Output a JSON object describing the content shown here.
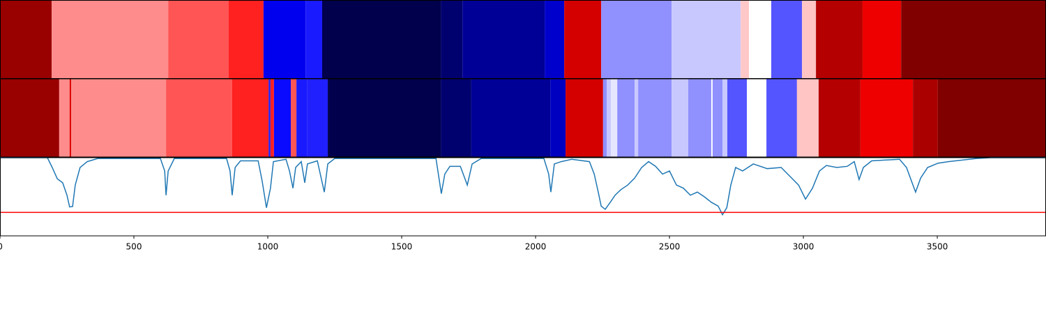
{
  "chart_data": {
    "type": "segmentation",
    "xlim": [
      0,
      3906
    ],
    "xticks": [
      0,
      500,
      1000,
      1500,
      2000,
      2500,
      3000,
      3500
    ],
    "ylim": [
      0,
      1
    ],
    "rows": [
      {
        "segments": [
          {
            "start": 0,
            "end": 193,
            "color": "#990000"
          },
          {
            "start": 193,
            "end": 628,
            "color": "#ff8c8c"
          },
          {
            "start": 628,
            "end": 854,
            "color": "#ff5555"
          },
          {
            "start": 854,
            "end": 984,
            "color": "#ff2020"
          },
          {
            "start": 984,
            "end": 1141,
            "color": "#0000ee"
          },
          {
            "start": 1141,
            "end": 1203,
            "color": "#1a1aff"
          },
          {
            "start": 1203,
            "end": 1646,
            "color": "#00004c"
          },
          {
            "start": 1646,
            "end": 1727,
            "color": "#00006e"
          },
          {
            "start": 1727,
            "end": 2034,
            "color": "#000096"
          },
          {
            "start": 2034,
            "end": 2107,
            "color": "#0000cc"
          },
          {
            "start": 2107,
            "end": 2245,
            "color": "#d40000"
          },
          {
            "start": 2245,
            "end": 2508,
            "color": "#9090ff"
          },
          {
            "start": 2508,
            "end": 2766,
            "color": "#c8c8ff"
          },
          {
            "start": 2766,
            "end": 2797,
            "color": "#ffc8c8"
          },
          {
            "start": 2797,
            "end": 2880,
            "color": "#ffffff"
          },
          {
            "start": 2880,
            "end": 2995,
            "color": "#5555ff"
          },
          {
            "start": 2995,
            "end": 3047,
            "color": "#ffc4c4"
          },
          {
            "start": 3047,
            "end": 3221,
            "color": "#b40000"
          },
          {
            "start": 3221,
            "end": 3365,
            "color": "#ee0000"
          },
          {
            "start": 3365,
            "end": 3906,
            "color": "#800000"
          }
        ]
      },
      {
        "segments": [
          {
            "start": 0,
            "end": 221,
            "color": "#990000"
          },
          {
            "start": 221,
            "end": 260,
            "color": "#ff8c8c"
          },
          {
            "start": 260,
            "end": 266,
            "color": "#dd0000"
          },
          {
            "start": 266,
            "end": 620,
            "color": "#ff8c8c"
          },
          {
            "start": 620,
            "end": 867,
            "color": "#ff5555"
          },
          {
            "start": 867,
            "end": 1003,
            "color": "#ff2020"
          },
          {
            "start": 1003,
            "end": 1010,
            "color": "#2020ff"
          },
          {
            "start": 1010,
            "end": 1023,
            "color": "#ff2020"
          },
          {
            "start": 1023,
            "end": 1086,
            "color": "#0a0aff"
          },
          {
            "start": 1086,
            "end": 1107,
            "color": "#ff5555"
          },
          {
            "start": 1107,
            "end": 1148,
            "color": "#1a1aff"
          },
          {
            "start": 1148,
            "end": 1224,
            "color": "#2020ff"
          },
          {
            "start": 1224,
            "end": 1646,
            "color": "#00004c"
          },
          {
            "start": 1646,
            "end": 1760,
            "color": "#00006e"
          },
          {
            "start": 1760,
            "end": 2055,
            "color": "#000096"
          },
          {
            "start": 2055,
            "end": 2112,
            "color": "#0000c0"
          },
          {
            "start": 2112,
            "end": 2252,
            "color": "#d40000"
          },
          {
            "start": 2252,
            "end": 2266,
            "color": "#9090ff"
          },
          {
            "start": 2266,
            "end": 2281,
            "color": "#c8c8ff"
          },
          {
            "start": 2281,
            "end": 2305,
            "color": "#e6e6ff"
          },
          {
            "start": 2305,
            "end": 2370,
            "color": "#9090ff"
          },
          {
            "start": 2370,
            "end": 2383,
            "color": "#c8c8ff"
          },
          {
            "start": 2383,
            "end": 2508,
            "color": "#9090ff"
          },
          {
            "start": 2508,
            "end": 2570,
            "color": "#c8c8ff"
          },
          {
            "start": 2570,
            "end": 2656,
            "color": "#9090ff"
          },
          {
            "start": 2656,
            "end": 2661,
            "color": "#ffffff"
          },
          {
            "start": 2661,
            "end": 2698,
            "color": "#9090ff"
          },
          {
            "start": 2698,
            "end": 2716,
            "color": "#c8c8ff"
          },
          {
            "start": 2716,
            "end": 2789,
            "color": "#5555ff"
          },
          {
            "start": 2789,
            "end": 2862,
            "color": "#ffffff"
          },
          {
            "start": 2862,
            "end": 2976,
            "color": "#5555ff"
          },
          {
            "start": 2976,
            "end": 3057,
            "color": "#ffc4c4"
          },
          {
            "start": 3057,
            "end": 3213,
            "color": "#b40000"
          },
          {
            "start": 3213,
            "end": 3409,
            "color": "#ee0000"
          },
          {
            "start": 3409,
            "end": 3502,
            "color": "#aa0000"
          },
          {
            "start": 3502,
            "end": 3906,
            "color": "#800000"
          }
        ]
      }
    ],
    "line": {
      "color": "#1f77b4",
      "x": [
        0,
        177,
        195,
        214,
        234,
        250,
        260,
        271,
        281,
        299,
        326,
        365,
        599,
        615,
        620,
        628,
        651,
        846,
        859,
        867,
        878,
        898,
        964,
        979,
        995,
        1010,
        1021,
        1068,
        1081,
        1094,
        1104,
        1125,
        1138,
        1148,
        1185,
        1211,
        1224,
        1250,
        1628,
        1641,
        1648,
        1661,
        1680,
        1719,
        1745,
        1763,
        1797,
        2031,
        2049,
        2057,
        2070,
        2096,
        2135,
        2201,
        2219,
        2234,
        2245,
        2260,
        2279,
        2297,
        2318,
        2344,
        2370,
        2396,
        2422,
        2448,
        2474,
        2500,
        2526,
        2552,
        2578,
        2604,
        2630,
        2656,
        2682,
        2698,
        2714,
        2729,
        2747,
        2773,
        2813,
        2865,
        2917,
        2956,
        2982,
        3008,
        3034,
        3060,
        3086,
        3125,
        3164,
        3190,
        3208,
        3224,
        3255,
        3359,
        3385,
        3406,
        3419,
        3438,
        3464,
        3503,
        3542,
        3646,
        3698,
        3906
      ],
      "values": [
        1.0,
        1.0,
        0.875,
        0.73,
        0.68,
        0.52,
        0.37,
        0.375,
        0.65,
        0.875,
        0.95,
        0.99,
        0.99,
        0.83,
        0.52,
        0.83,
        0.99,
        0.99,
        0.83,
        0.52,
        0.875,
        0.96,
        0.96,
        0.7,
        0.36,
        0.61,
        0.95,
        0.98,
        0.83,
        0.61,
        0.875,
        0.95,
        0.68,
        0.92,
        0.96,
        0.56,
        0.92,
        0.99,
        0.99,
        0.7,
        0.54,
        0.79,
        0.89,
        0.89,
        0.65,
        0.92,
        0.99,
        0.99,
        0.79,
        0.56,
        0.92,
        0.95,
        0.98,
        0.95,
        0.79,
        0.56,
        0.38,
        0.34,
        0.43,
        0.52,
        0.59,
        0.65,
        0.74,
        0.875,
        0.95,
        0.89,
        0.79,
        0.83,
        0.65,
        0.61,
        0.52,
        0.56,
        0.5,
        0.43,
        0.38,
        0.27,
        0.36,
        0.65,
        0.875,
        0.83,
        0.92,
        0.86,
        0.875,
        0.74,
        0.65,
        0.47,
        0.61,
        0.83,
        0.9,
        0.875,
        0.89,
        0.95,
        0.72,
        0.875,
        0.96,
        0.98,
        0.875,
        0.68,
        0.56,
        0.74,
        0.875,
        0.93,
        0.95,
        0.99,
        1.0,
        1.0
      ]
    },
    "threshold": {
      "value": 0.3,
      "color": "#ff0000"
    }
  }
}
